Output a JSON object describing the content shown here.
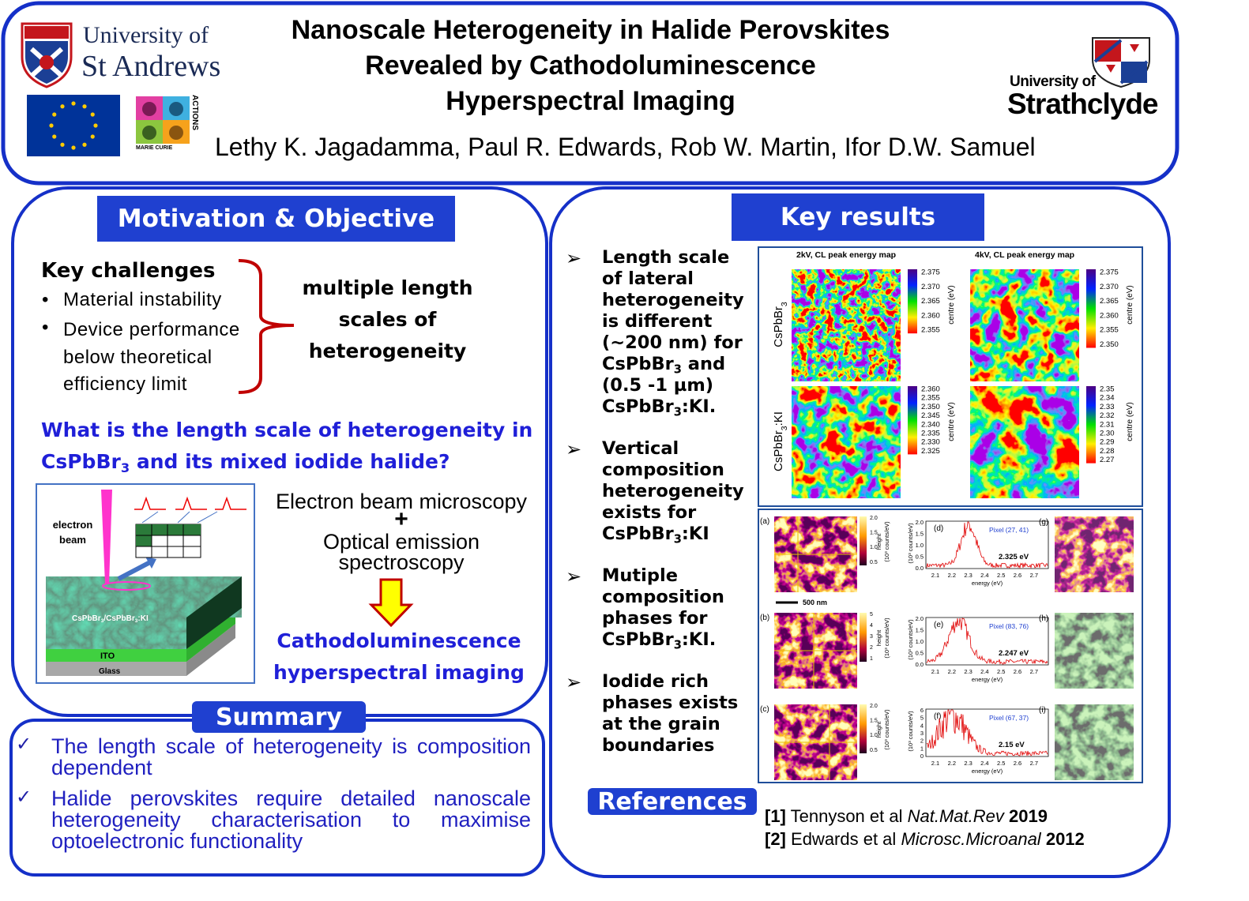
{
  "header": {
    "title": [
      "Nanoscale Heterogeneity in Halide Perovskites",
      "Revealed by Cathodoluminescence",
      "Hyperspectral Imaging"
    ],
    "authors": "Lethy K. Jagadamma, Paul R. Edwards, Rob W. Martin, Ifor D.W. Samuel",
    "st_andrews": [
      "University of",
      "St Andrews"
    ],
    "strathclyde": [
      "University of",
      "Strathclyde"
    ],
    "marie_curie": [
      "MARIE CURIE",
      "ACTIONS"
    ]
  },
  "motivation": {
    "heading": "Motivation & Objective",
    "challenges_title": "Key challenges",
    "challenges": [
      "Material instability",
      "Device performance below theoretical efficiency limit"
    ],
    "conclusion": "multiple length scales of heterogeneity",
    "question": [
      "What is the length scale of heterogeneity in CsPbBr",
      "3",
      " and its mixed iodide halide?"
    ],
    "diagram": {
      "beam": "electron beam",
      "film": [
        "CsPbBr",
        "3",
        "/CsPbBr",
        "3",
        ":KI"
      ],
      "ito": "ITO",
      "glass": "Glass"
    },
    "methods": [
      "Electron beam microscopy",
      "+",
      "Optical emission spectroscopy"
    ],
    "technique": "Cathodoluminescence hyperspectral imaging"
  },
  "summary": {
    "heading": "Summary",
    "items": [
      "The length scale of heterogeneity is composition dependent",
      "Halide perovskites require detailed nanoscale heterogeneity characterisation to maximise optoelectronic functionality"
    ]
  },
  "key_results": {
    "heading": "Key results",
    "bullets": [
      [
        "Length scale of lateral heterogeneity is different (~200 nm) for CsPbBr",
        "3",
        " and (0.5 -1 µm) CsPbBr",
        "3",
        ":KI."
      ],
      [
        "Vertical composition heterogeneity exists for CsPbBr",
        "3",
        ":KI"
      ],
      [
        "Mutiple composition phases for CsPbBr",
        "3",
        ":KI."
      ],
      [
        "Iodide rich phases exists at the grain boundaries"
      ]
    ],
    "map_figure": {
      "columns": [
        "2kV, CL peak energy map",
        "4kV, CL peak energy map"
      ],
      "rows": [
        [
          "CsPbBr",
          "3"
        ],
        [
          "CsPbBr",
          "3",
          ":KI"
        ]
      ],
      "colorbar_label": "centre (eV)",
      "colorbar_ticks": [
        [
          [
            "2.375",
            "2.370",
            "2.365",
            "2.360",
            "2.355"
          ],
          [
            "2.375",
            "2.370",
            "2.365",
            "2.360",
            "2.355",
            "2.350"
          ]
        ],
        [
          [
            "2.360",
            "2.355",
            "2.350",
            "2.345",
            "2.340",
            "2.335",
            "2.330",
            "2.325"
          ],
          [
            "2.35",
            "2.34",
            "2.33",
            "2.32",
            "2.31",
            "2.30",
            "2.29",
            "2.28",
            "2.27"
          ]
        ]
      ]
    },
    "spectra_figure": {
      "scale_bar": "500 nm",
      "height_label": "height",
      "y_label": "(10³ counts/eV)",
      "x_label": "energy (eV)",
      "x_ticks": [
        "2.1",
        "2.2",
        "2.3",
        "2.4",
        "2.5",
        "2.6",
        "2.7"
      ],
      "rows": [
        {
          "letters": [
            "(a)",
            "(d)",
            "(g)"
          ],
          "height_ticks": [
            "2.0",
            "1.5",
            "1.0",
            "0.5"
          ],
          "y_ticks": [
            "2.0",
            "1.5",
            "1.0",
            "0.5",
            "0.0"
          ],
          "pixel": "Pixel (27, 41)",
          "energy": "2.325 eV"
        },
        {
          "letters": [
            "(b)",
            "(e)",
            "(h)"
          ],
          "height_ticks": [
            "5",
            "4",
            "3",
            "2",
            "1"
          ],
          "y_ticks": [
            "2.0",
            "1.5",
            "1.0",
            "0.5",
            "0.0"
          ],
          "pixel": "Pixel (83, 76)",
          "energy": "2.247 eV"
        },
        {
          "letters": [
            "(c)",
            "(f)",
            "(i)"
          ],
          "height_ticks": [
            "2.0",
            "1.5",
            "1.0",
            "0.5"
          ],
          "y_ticks": [
            "6",
            "5",
            "4",
            "3",
            "2",
            "1",
            "0"
          ],
          "pixel": "Pixel (67, 37)",
          "energy": "2.15 eV"
        }
      ]
    }
  },
  "references": {
    "heading": "References",
    "items": [
      {
        "number": "[1]",
        "authors": "Tennyson et al",
        "journal": "Nat.Mat.Rev",
        "year": "2019"
      },
      {
        "number": "[2]",
        "authors": "Edwards et al",
        "journal": "Microsc.Microanal",
        "year": "2012"
      }
    ]
  }
}
